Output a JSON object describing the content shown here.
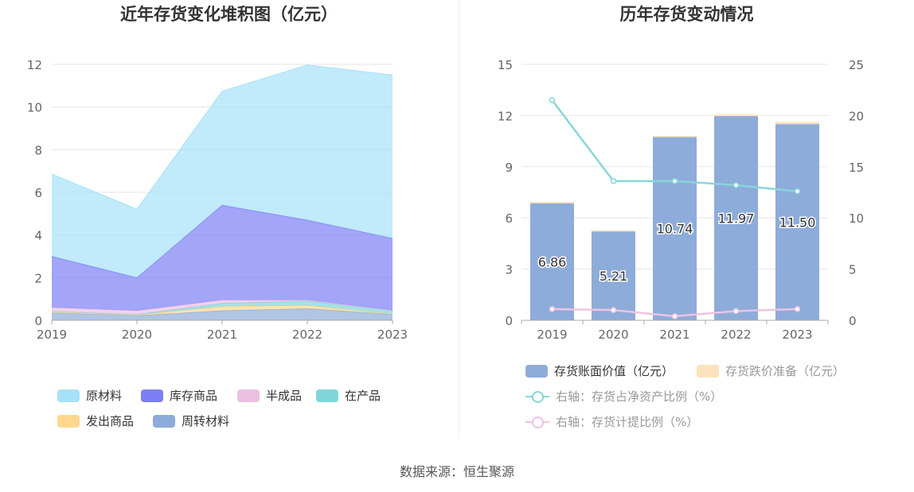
{
  "source_text": "数据来源：恒生聚源",
  "chart_data": [
    {
      "type": "area",
      "title": "近年存货变化堆积图（亿元）",
      "stacked": true,
      "x": [
        "2019",
        "2020",
        "2021",
        "2022",
        "2023"
      ],
      "ylim": [
        0,
        12
      ],
      "yticks": [
        "0",
        "2",
        "4",
        "6",
        "8",
        "10",
        "12"
      ],
      "grid": true,
      "legend_position": "bottom",
      "series": [
        {
          "name": "周转材料",
          "color": "#8eacd9",
          "values": [
            0.35,
            0.22,
            0.45,
            0.55,
            0.28
          ]
        },
        {
          "name": "发出商品",
          "color": "#fdd78e",
          "values": [
            0.05,
            0.03,
            0.2,
            0.15,
            0.02
          ]
        },
        {
          "name": "在产品",
          "color": "#7fd6da",
          "values": [
            0.02,
            0.02,
            0.15,
            0.2,
            0.15
          ]
        },
        {
          "name": "半成品",
          "color": "#ebbfe0",
          "values": [
            0.18,
            0.18,
            0.15,
            0.05,
            0.02
          ]
        },
        {
          "name": "库存商品",
          "color": "#7b7ff5",
          "values": [
            2.4,
            1.55,
            4.45,
            3.75,
            3.38
          ]
        },
        {
          "name": "原材料",
          "color": "#a6e1fa",
          "values": [
            3.86,
            3.21,
            5.34,
            7.27,
            7.65
          ]
        }
      ]
    },
    {
      "type": "bar",
      "title": "历年存货变动情况",
      "categories": [
        "2019",
        "2020",
        "2021",
        "2022",
        "2023"
      ],
      "ylim": [
        0,
        15
      ],
      "yticks": [
        "0",
        "3",
        "6",
        "9",
        "12",
        "15"
      ],
      "y2lim": [
        0,
        25
      ],
      "y2ticks": [
        "0",
        "5",
        "10",
        "15",
        "20",
        "25"
      ],
      "grid": true,
      "legend_position": "bottom",
      "bar_series": [
        {
          "name": "存货账面价值（亿元）",
          "color": "#8eacd9",
          "values": [
            6.86,
            5.21,
            10.74,
            11.97,
            11.5
          ],
          "labels": [
            "6.86",
            "5.21",
            "10.74",
            "11.97",
            "11.50"
          ]
        },
        {
          "name": "存货跌价准备（亿元）",
          "color": "#fde3bd",
          "values": [
            0.08,
            0.06,
            0.07,
            0.1,
            0.13
          ]
        }
      ],
      "line_series": [
        {
          "name": "右轴：存货占净资产比例（%）",
          "color": "#88d6dc",
          "axis": "right",
          "values": [
            21.5,
            13.6,
            13.6,
            13.2,
            12.6
          ]
        },
        {
          "name": "右轴：存货计提比例（%）",
          "color": "#eec3e4",
          "axis": "right",
          "values": [
            1.1,
            1.0,
            0.4,
            0.9,
            1.1
          ]
        }
      ]
    }
  ]
}
